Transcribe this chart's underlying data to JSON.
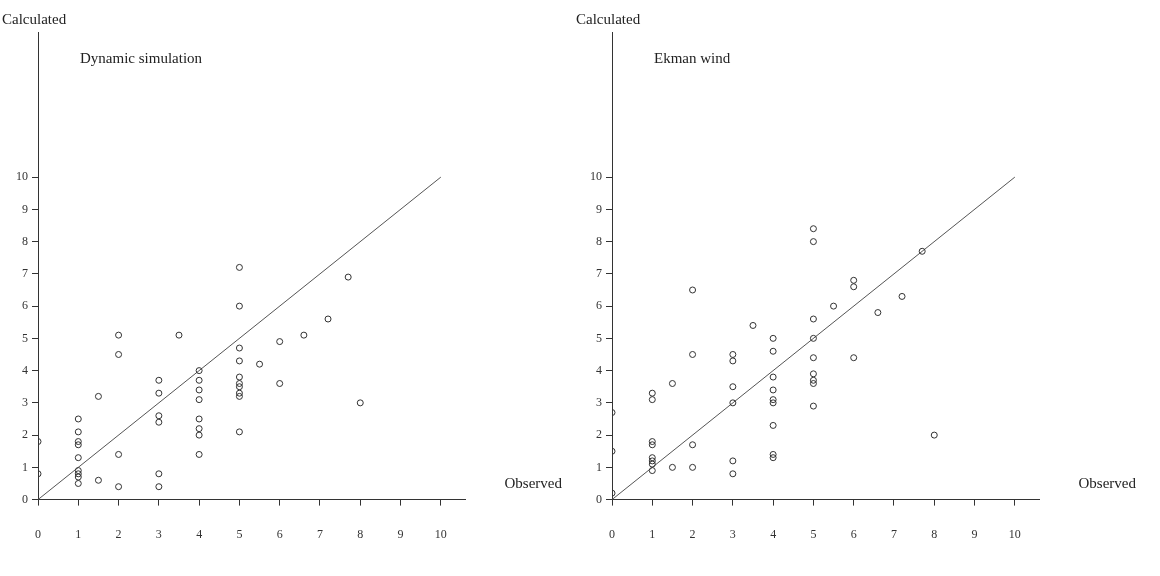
{
  "chart_data": [
    {
      "type": "scatter",
      "title": "Dynamic simulation",
      "xlabel": "Observed",
      "ylabel": "Calculated",
      "xlim": [
        0,
        10.6
      ],
      "ylim": [
        0,
        14.5
      ],
      "xticks": [
        0,
        1,
        2,
        3,
        4,
        5,
        6,
        7,
        8,
        9,
        10
      ],
      "yticks": [
        0,
        1,
        2,
        3,
        4,
        5,
        6,
        7,
        8,
        9,
        10
      ],
      "series": [
        {
          "marker": "circle",
          "color": "#333333",
          "x": [
            0,
            0,
            1,
            1,
            1,
            1,
            1,
            1,
            1,
            1,
            1,
            1.5,
            1.5,
            2,
            2,
            2,
            2,
            3,
            3,
            3,
            3,
            3,
            3,
            3.5,
            4,
            4,
            4,
            4,
            4,
            4,
            4,
            4,
            5,
            5,
            5,
            5,
            5,
            5,
            5,
            5,
            5,
            5,
            5.5,
            6,
            6,
            6.6,
            7.2,
            7.7,
            8
          ],
          "values": [
            1.8,
            0.8,
            2.5,
            2.1,
            1.8,
            1.7,
            1.3,
            0.9,
            0.8,
            0.7,
            0.5,
            3.2,
            0.6,
            5.1,
            4.5,
            1.4,
            0.4,
            3.7,
            3.3,
            2.6,
            2.4,
            0.8,
            0.4,
            5.1,
            4.0,
            3.7,
            3.4,
            3.1,
            2.5,
            2.2,
            2.0,
            1.4,
            7.2,
            6.0,
            4.7,
            4.3,
            3.8,
            3.6,
            3.5,
            3.3,
            3.2,
            2.1,
            4.2,
            4.9,
            3.6,
            5.1,
            5.6,
            6.9,
            3.0
          ]
        },
        {
          "type": "line",
          "marker": "none",
          "color": "#555555",
          "x": [
            0,
            10
          ],
          "values": [
            0,
            10
          ]
        }
      ]
    },
    {
      "type": "scatter",
      "title": "Ekman wind",
      "xlabel": "Observed",
      "ylabel": "Calculated",
      "xlim": [
        0,
        10.6
      ],
      "ylim": [
        0,
        14.5
      ],
      "xticks": [
        0,
        1,
        2,
        3,
        4,
        5,
        6,
        7,
        8,
        9,
        10
      ],
      "yticks": [
        0,
        1,
        2,
        3,
        4,
        5,
        6,
        7,
        8,
        9,
        10
      ],
      "series": [
        {
          "marker": "circle",
          "color": "#333333",
          "x": [
            0,
            0,
            0,
            1,
            1,
            1,
            1,
            1,
            1,
            1,
            1,
            1.5,
            1.5,
            2,
            2,
            2,
            2,
            3,
            3,
            3,
            3,
            3,
            3,
            3.5,
            4,
            4,
            4,
            4,
            4,
            4,
            4,
            4,
            4,
            5,
            5,
            5,
            5,
            5,
            5,
            5,
            5,
            5,
            5.5,
            6,
            6,
            6,
            6.6,
            7.2,
            7.7,
            8
          ],
          "values": [
            0.2,
            1.5,
            2.7,
            3.3,
            3.1,
            1.8,
            1.7,
            1.3,
            1.2,
            1.1,
            0.9,
            3.6,
            1.0,
            6.5,
            4.5,
            1.7,
            1.0,
            4.5,
            4.3,
            3.5,
            3.0,
            1.2,
            0.8,
            5.4,
            5.0,
            4.6,
            3.8,
            3.4,
            3.1,
            3.0,
            2.3,
            1.4,
            1.3,
            8.4,
            8.0,
            5.6,
            5.0,
            4.4,
            3.9,
            3.7,
            3.6,
            2.9,
            6.0,
            6.8,
            6.6,
            4.4,
            5.8,
            6.3,
            7.7,
            2.0
          ]
        },
        {
          "type": "line",
          "marker": "none",
          "color": "#555555",
          "x": [
            0,
            10
          ],
          "values": [
            0,
            10
          ]
        }
      ]
    }
  ]
}
